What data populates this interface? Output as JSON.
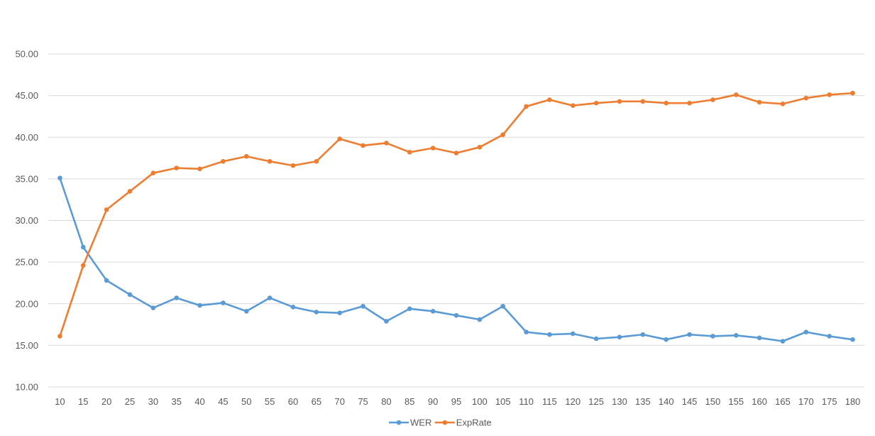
{
  "chart_data": {
    "type": "line",
    "title": "",
    "xlabel": "",
    "ylabel": "",
    "x": [
      10,
      15,
      20,
      25,
      30,
      35,
      40,
      45,
      50,
      55,
      60,
      65,
      70,
      75,
      80,
      85,
      90,
      95,
      100,
      105,
      110,
      115,
      120,
      125,
      130,
      135,
      140,
      145,
      150,
      155,
      160,
      165,
      170,
      175,
      180
    ],
    "ylim": [
      10,
      50
    ],
    "y_ticks": [
      "10.00",
      "15.00",
      "20.00",
      "25.00",
      "30.00",
      "35.00",
      "40.00",
      "45.00",
      "50.00"
    ],
    "grid": true,
    "legend_position": "bottom",
    "series": [
      {
        "name": "WER",
        "color": "#5b9bd5",
        "values": [
          35.1,
          26.8,
          22.8,
          21.1,
          19.5,
          20.7,
          19.8,
          20.1,
          19.1,
          20.7,
          19.6,
          19.0,
          18.9,
          19.7,
          17.9,
          19.4,
          19.1,
          18.6,
          18.1,
          19.7,
          16.6,
          16.3,
          16.4,
          15.8,
          16.0,
          16.3,
          15.7,
          16.3,
          16.1,
          16.2,
          15.9,
          15.5,
          16.6,
          16.1,
          15.7
        ]
      },
      {
        "name": "ExpRate",
        "color": "#ed7d31",
        "values": [
          16.1,
          24.6,
          31.3,
          33.5,
          35.7,
          36.3,
          36.2,
          37.1,
          37.7,
          37.1,
          36.6,
          37.1,
          39.8,
          39.0,
          39.3,
          38.2,
          38.7,
          38.1,
          38.8,
          40.3,
          43.7,
          44.5,
          43.8,
          44.1,
          44.3,
          44.3,
          44.1,
          44.1,
          44.5,
          45.1,
          44.2,
          44.0,
          44.7,
          45.1,
          45.3
        ]
      }
    ]
  }
}
